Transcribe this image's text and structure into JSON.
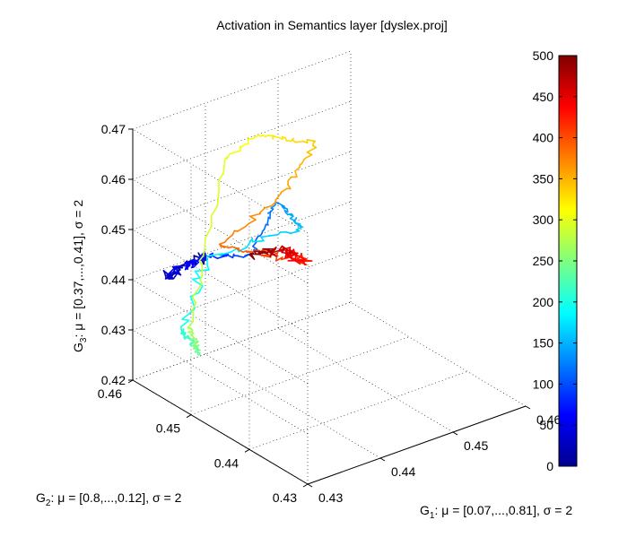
{
  "chart_data": {
    "type": "line",
    "title": "Activation in Semantics layer [dyslex.proj]",
    "x_axis": {
      "label_main": "G",
      "label_sub": "1",
      "label_rest": ": μ = [0.07,...,0.81], σ = 2",
      "ticks": [
        "0.43",
        "0.44",
        "0.45",
        "0.46"
      ],
      "range": [
        0.43,
        0.46
      ]
    },
    "y_axis": {
      "label_main": "G",
      "label_sub": "2",
      "label_rest": ": μ = [0.8,...,0.12], σ = 2",
      "ticks": [
        "0.43",
        "0.44",
        "0.45",
        "0.46"
      ],
      "range": [
        0.43,
        0.46
      ]
    },
    "z_axis": {
      "label_main": "G",
      "label_sub": "3",
      "label_rest": ": μ = [0.37,...,0.41], σ = 2",
      "ticks": [
        "0.42",
        "0.43",
        "0.44",
        "0.45",
        "0.46",
        "0.47"
      ],
      "range": [
        0.42,
        0.47
      ]
    },
    "colorbar": {
      "colormap": "jet",
      "range": [
        0,
        500
      ],
      "ticks": [
        "0",
        "50",
        "100",
        "150",
        "200",
        "250",
        "300",
        "350",
        "400",
        "450",
        "500"
      ]
    },
    "grid": true,
    "trajectory": {
      "time_range": [
        0,
        500
      ],
      "description_keypoints": [
        {
          "t": 0,
          "x": 0.4365,
          "y": 0.4555,
          "z": 0.4445
        },
        {
          "t": 30,
          "x": 0.4312,
          "y": 0.4562,
          "z": 0.4425
        },
        {
          "t": 80,
          "x": 0.4365,
          "y": 0.4555,
          "z": 0.4445
        },
        {
          "t": 100,
          "x": 0.4425,
          "y": 0.4555,
          "z": 0.4415
        },
        {
          "t": 130,
          "x": 0.4495,
          "y": 0.4595,
          "z": 0.4455
        },
        {
          "t": 160,
          "x": 0.4475,
          "y": 0.4525,
          "z": 0.4465
        },
        {
          "t": 185,
          "x": 0.4395,
          "y": 0.4585,
          "z": 0.441
        },
        {
          "t": 200,
          "x": 0.433,
          "y": 0.4555,
          "z": 0.432
        },
        {
          "t": 240,
          "x": 0.435,
          "y": 0.455,
          "z": 0.426
        },
        {
          "t": 275,
          "x": 0.434,
          "y": 0.455,
          "z": 0.432
        },
        {
          "t": 290,
          "x": 0.436,
          "y": 0.455,
          "z": 0.4465
        },
        {
          "t": 300,
          "x": 0.437,
          "y": 0.453,
          "z": 0.465
        },
        {
          "t": 315,
          "x": 0.443,
          "y": 0.455,
          "z": 0.4655
        },
        {
          "t": 340,
          "x": 0.451,
          "y": 0.455,
          "z": 0.46
        },
        {
          "t": 360,
          "x": 0.447,
          "y": 0.455,
          "z": 0.452
        },
        {
          "t": 380,
          "x": 0.44,
          "y": 0.4575,
          "z": 0.4435
        },
        {
          "t": 420,
          "x": 0.448,
          "y": 0.453,
          "z": 0.439
        },
        {
          "t": 460,
          "x": 0.4495,
          "y": 0.458,
          "z": 0.437
        },
        {
          "t": 500,
          "x": 0.447,
          "y": 0.4605,
          "z": 0.436
        }
      ]
    }
  }
}
